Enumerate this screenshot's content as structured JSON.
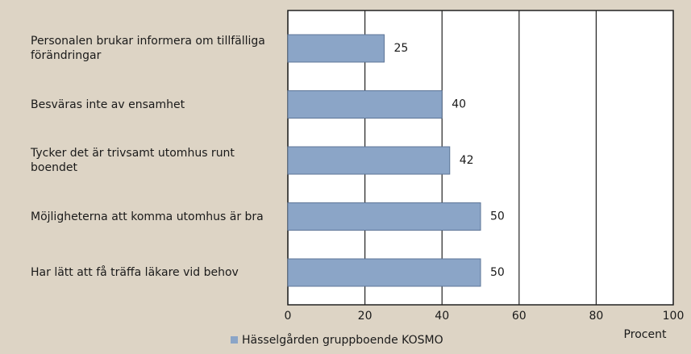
{
  "chart_data": {
    "type": "bar",
    "orientation": "horizontal",
    "categories": [
      "Personalen brukar informera om tillfälliga förändringar",
      "Besväras inte av ensamhet",
      "Tycker det är trivsamt utomhus runt boendet",
      "Möjligheterna att komma utomhus är bra",
      "Har lätt att få träffa läkare vid behov"
    ],
    "series": [
      {
        "name": "Hässelgården gruppboende KOSMO",
        "color": "#8ba5c7",
        "values": [
          25,
          40,
          42,
          50,
          50
        ]
      }
    ],
    "xlabel": "Procent",
    "xlim": [
      0,
      100
    ],
    "xticks": [
      0,
      20,
      40,
      60,
      80,
      100
    ],
    "grid": true,
    "legend": "bottom"
  }
}
